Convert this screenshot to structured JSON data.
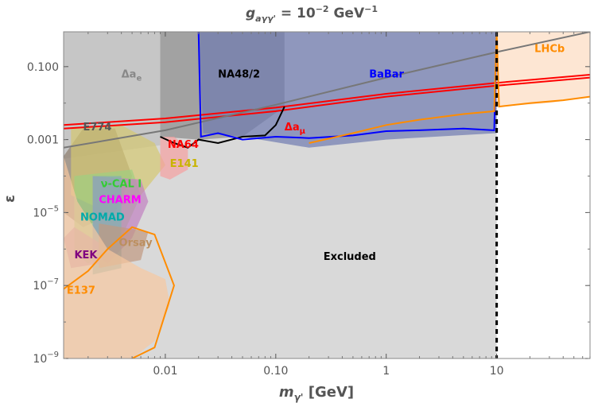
{
  "chart_data": {
    "type": "area",
    "title": "g_{aγγ'} = 10^{-2} GeV^{-1}",
    "title_main": "g",
    "title_sub": "aγγ'",
    "title_rest": " = 10",
    "title_exp": "−2",
    "title_unit": " GeV",
    "title_unit_exp": "−1",
    "xlabel": "m",
    "xlabel_sub": "γ'",
    "xlabel_rest": " [GeV]",
    "ylabel": "ε",
    "x_scale": "log",
    "y_scale": "log",
    "xlim": [
      0.0012,
      70
    ],
    "ylim": [
      1e-09,
      0.9
    ],
    "x_ticks": [
      {
        "value": 0.01,
        "label": "0.01"
      },
      {
        "value": 0.1,
        "label": "0.10"
      },
      {
        "value": 1,
        "label": "1"
      },
      {
        "value": 10,
        "label": "10"
      }
    ],
    "y_ticks": [
      {
        "value": 0.1,
        "label": "0.100",
        "sup": ""
      },
      {
        "value": 0.001,
        "label": "0.001",
        "sup": ""
      },
      {
        "value": 1e-05,
        "label": "10",
        "sup": "−5"
      },
      {
        "value": 1e-07,
        "label": "10",
        "sup": "−7"
      },
      {
        "value": 1e-09,
        "label": "10",
        "sup": "−9"
      }
    ],
    "vertical_line": {
      "x": 10,
      "style": "dashed",
      "color": "#000000"
    },
    "excluded_label": "Excluded",
    "regions": [
      {
        "name": "Excluded",
        "color": "#d9d9d9",
        "label": "Excluded",
        "label_at": [
          0.27,
          5e-07
        ],
        "label_color": "#000000",
        "points": [
          [
            0.0012,
            1e-09
          ],
          [
            10,
            1e-09
          ],
          [
            10,
            0.9
          ],
          [
            0.0012,
            0.9
          ]
        ]
      },
      {
        "name": "Δa_e",
        "color": "#bdbdbd",
        "label": "Δa_e",
        "label_at": [
          0.004,
          0.05
        ],
        "label_color": "#888888",
        "points": [
          [
            0.0012,
            0.9
          ],
          [
            0.009,
            0.9
          ],
          [
            0.009,
            0.0007
          ],
          [
            0.0012,
            0.0003
          ]
        ]
      },
      {
        "name": "NA48/2",
        "color": "#8a8a8a",
        "label": "NA48/2",
        "label_at": [
          0.03,
          0.05
        ],
        "label_color": "#000000",
        "points": [
          [
            0.009,
            0.9
          ],
          [
            0.12,
            0.9
          ],
          [
            0.12,
            0.008
          ],
          [
            0.05,
            0.0012
          ],
          [
            0.02,
            0.001
          ],
          [
            0.009,
            0.0012
          ]
        ]
      },
      {
        "name": "BaBar",
        "color": "#6f7ab0",
        "label": "BaBar",
        "label_at": [
          0.7,
          0.05
        ],
        "label_color": "#0000ff",
        "points": [
          [
            0.02,
            0.9
          ],
          [
            10,
            0.9
          ],
          [
            10,
            0.0015
          ],
          [
            1,
            0.001
          ],
          [
            0.2,
            0.0006
          ],
          [
            0.05,
            0.0012
          ],
          [
            0.022,
            0.0015
          ]
        ]
      },
      {
        "name": "LHCb",
        "color": "#fcdcc0",
        "label": "LHCb",
        "label_at": [
          22,
          0.25
        ],
        "label_color": "#ff8c00",
        "points": [
          [
            10,
            0.9
          ],
          [
            70,
            0.9
          ],
          [
            70,
            0.015
          ],
          [
            30,
            0.01
          ],
          [
            10,
            0.008
          ]
        ]
      },
      {
        "name": "E774",
        "color": "#8f7f6f",
        "label": "E774",
        "label_at": [
          0.0018,
          0.0018
        ],
        "label_color": "#555555",
        "points": [
          [
            0.0012,
            0.00035
          ],
          [
            0.0018,
            0.002
          ],
          [
            0.0035,
            0.002
          ],
          [
            0.005,
            0.0001
          ],
          [
            0.0035,
            1e-05
          ],
          [
            0.0018,
            4e-06
          ],
          [
            0.0012,
            1e-05
          ]
        ]
      },
      {
        "name": "E141",
        "color": "#d4c870",
        "label": "E141",
        "label_at": [
          0.011,
          0.00018
        ],
        "label_color": "#c8b400",
        "points": [
          [
            0.0014,
            0.002
          ],
          [
            0.004,
            0.0025
          ],
          [
            0.008,
            0.0008
          ],
          [
            0.01,
            0.0002
          ],
          [
            0.006,
            3e-05
          ],
          [
            0.003,
            1e-05
          ],
          [
            0.0014,
            3e-05
          ]
        ]
      },
      {
        "name": "NA64",
        "color": "#f5a0a0",
        "label": "NA64",
        "label_at": [
          0.0105,
          0.0006
        ],
        "label_color": "#ff0000",
        "points": [
          [
            0.009,
            0.0012
          ],
          [
            0.012,
            0.0012
          ],
          [
            0.016,
            0.0006
          ],
          [
            0.016,
            0.00015
          ],
          [
            0.011,
            8e-05
          ],
          [
            0.009,
            0.0001
          ]
        ]
      },
      {
        "name": "ν-CAL I",
        "color": "#a0d080",
        "label": "ν-CAL I",
        "label_at": [
          0.0026,
          5e-05
        ],
        "label_color": "#32cd32",
        "points": [
          [
            0.0015,
            0.0001
          ],
          [
            0.005,
            0.00015
          ],
          [
            0.006,
            3e-05
          ],
          [
            0.004,
            2e-06
          ],
          [
            0.002,
            4e-07
          ],
          [
            0.0015,
            8e-07
          ]
        ]
      },
      {
        "name": "CHARM",
        "color": "#c080c0",
        "label": "CHARM",
        "label_at": [
          0.0025,
          1.8e-05
        ],
        "label_color": "#ff00ff",
        "points": [
          [
            0.0022,
            0.0001
          ],
          [
            0.006,
            8e-05
          ],
          [
            0.007,
            2e-05
          ],
          [
            0.005,
            2e-06
          ],
          [
            0.003,
            4e-07
          ],
          [
            0.0022,
            8e-07
          ]
        ]
      },
      {
        "name": "NOMAD",
        "color": "#80b0b0",
        "label": "NOMAD",
        "label_at": [
          0.0017,
          6e-06
        ],
        "label_color": "#00aaaa",
        "points": [
          [
            0.0022,
            0.0001
          ],
          [
            0.004,
            0.0001
          ],
          [
            0.004,
            3e-07
          ],
          [
            0.0022,
            2e-07
          ]
        ]
      },
      {
        "name": "Orsay",
        "color": "#c09880",
        "label": "Orsay",
        "label_at": [
          0.0038,
          1.2e-06
        ],
        "label_color": "#bc8f5f",
        "points": [
          [
            0.0025,
            5e-06
          ],
          [
            0.007,
            3e-06
          ],
          [
            0.006,
            5e-07
          ],
          [
            0.0025,
            3e-07
          ]
        ]
      },
      {
        "name": "KEK",
        "color": "#c090b0",
        "label": "KEK",
        "label_at": [
          0.0015,
          5.5e-07
        ],
        "label_color": "#800080",
        "points": [
          [
            0.0012,
            2e-06
          ],
          [
            0.0015,
            4e-06
          ],
          [
            0.0025,
            1.5e-06
          ],
          [
            0.0025,
            4e-07
          ],
          [
            0.0014,
            3e-07
          ]
        ]
      },
      {
        "name": "E137",
        "color": "#f7c8a0",
        "label": "E137",
        "label_at": [
          0.00128,
          6e-08
        ],
        "label_color": "#ff8c00",
        "points": [
          [
            0.0012,
            0.00035
          ],
          [
            0.0016,
            2e-05
          ],
          [
            0.003,
            1e-06
          ],
          [
            0.006,
            3e-07
          ],
          [
            0.01,
            1.5e-07
          ],
          [
            0.011,
            3e-08
          ],
          [
            0.008,
            3e-09
          ],
          [
            0.005,
            1e-09
          ],
          [
            0.0012,
            1e-09
          ]
        ]
      }
    ],
    "lines": [
      {
        "name": "Δa_μ",
        "color": "#ff0000",
        "label": "Δa_μ",
        "label_at": [
          0.12,
          0.0018
        ],
        "points": [
          [
            0.0012,
            0.002
          ],
          [
            0.01,
            0.003
          ],
          [
            0.1,
            0.006
          ],
          [
            1,
            0.015
          ],
          [
            10,
            0.03
          ],
          [
            70,
            0.05
          ]
        ]
      },
      {
        "name": "Δa_μ upper",
        "color": "#ff0000",
        "points": [
          [
            0.0012,
            0.0025
          ],
          [
            0.01,
            0.0038
          ],
          [
            0.1,
            0.0075
          ],
          [
            1,
            0.018
          ],
          [
            10,
            0.036
          ],
          [
            70,
            0.06
          ]
        ]
      },
      {
        "name": "Δa_e boundary",
        "color": "#777777",
        "points": [
          [
            0.0012,
            0.0006
          ],
          [
            0.01,
            0.0018
          ],
          [
            0.1,
            0.009
          ],
          [
            1,
            0.05
          ],
          [
            10,
            0.25
          ],
          [
            70,
            0.9
          ]
        ]
      },
      {
        "name": "NA48/2 boundary",
        "color": "#000000",
        "points": [
          [
            0.009,
            0.0012
          ],
          [
            0.012,
            0.0008
          ],
          [
            0.016,
            0.0006
          ],
          [
            0.02,
            0.001
          ],
          [
            0.03,
            0.0008
          ],
          [
            0.05,
            0.0012
          ],
          [
            0.08,
            0.0013
          ],
          [
            0.1,
            0.0025
          ],
          [
            0.12,
            0.008
          ]
        ]
      },
      {
        "name": "BaBar boundary",
        "color": "#0000ff",
        "points": [
          [
            0.02,
            0.9
          ],
          [
            0.021,
            0.0012
          ],
          [
            0.03,
            0.0015
          ],
          [
            0.05,
            0.001
          ],
          [
            0.1,
            0.0012
          ],
          [
            0.2,
            0.0011
          ],
          [
            0.5,
            0.0013
          ],
          [
            1,
            0.0017
          ],
          [
            2,
            0.0018
          ],
          [
            5,
            0.002
          ],
          [
            9.5,
            0.0018
          ],
          [
            10,
            0.9
          ]
        ]
      },
      {
        "name": "E137 boundary",
        "color": "#ff8c00",
        "points": [
          [
            0.0012,
            8e-08
          ],
          [
            0.002,
            2.5e-07
          ],
          [
            0.003,
            1e-06
          ],
          [
            0.005,
            4e-06
          ],
          [
            0.008,
            2.5e-06
          ],
          [
            0.012,
            1e-07
          ],
          [
            0.008,
            2e-09
          ],
          [
            0.005,
            1e-09
          ]
        ]
      },
      {
        "name": "LHCb boundary",
        "color": "#ff8c00",
        "points": [
          [
            0.2,
            0.0008
          ],
          [
            0.5,
            0.0015
          ],
          [
            1,
            0.0025
          ],
          [
            2,
            0.0035
          ],
          [
            5,
            0.005
          ],
          [
            9.5,
            0.006
          ],
          [
            10,
            0.9
          ],
          [
            10.5,
            0.008
          ],
          [
            20,
            0.01
          ],
          [
            40,
            0.012
          ],
          [
            70,
            0.015
          ]
        ]
      }
    ]
  }
}
